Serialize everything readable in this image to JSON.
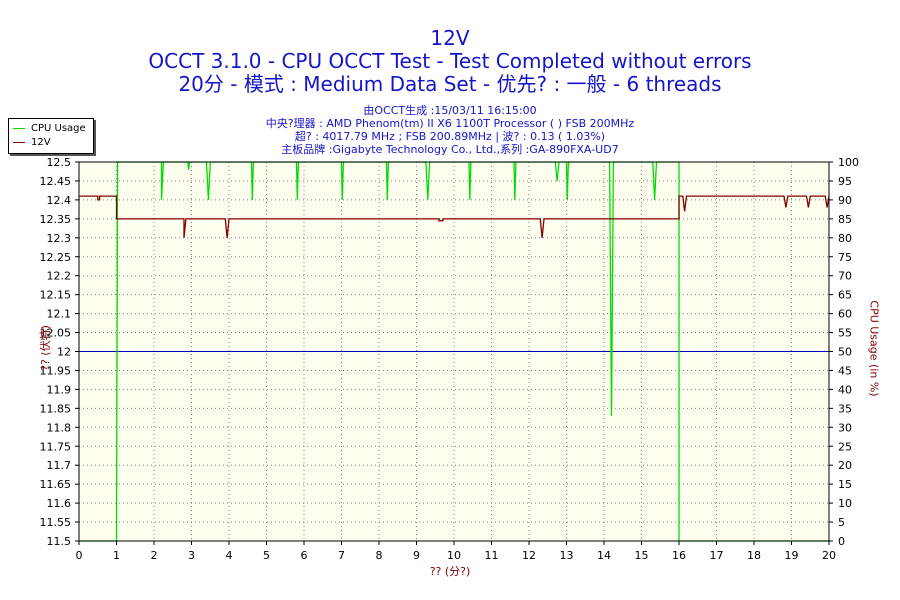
{
  "header": {
    "title": "12V",
    "line2": "OCCT 3.1.0 - CPU OCCT Test - Test Completed without errors",
    "line3": "20分 - 模式 : Medium Data Set - 优先? : 一般 - 6 threads",
    "info1": "由OCCT生成 :15/03/11 16:15:00",
    "info2": "中央?理器 : AMD Phenom(tm) II X6 1100T Processor (    ) FSB 200MHz",
    "info3": "超? : 4017.79 MHz ; FSB 200.89MHz | 波? : 0.13 ( 1.03%)",
    "info4": "主板品牌 :Gigabyte Technology Co., Ltd.,系列 :GA-890FXA-UD7"
  },
  "colors": {
    "plot_bg": "#fffff0",
    "grid": "#808080",
    "cpu_usage": "#00dd00",
    "voltage": "#800000",
    "threshold": "#0000c0",
    "text_blue": "#1515c8",
    "axis_text": "#800000"
  },
  "chart_data": {
    "type": "line",
    "xlabel": "?? (分?)",
    "ylabel_left": "?? (伏特)",
    "ylabel_right": "CPU Usage (in %)",
    "xlim": [
      0,
      20
    ],
    "ylim_left": [
      11.5,
      12.5
    ],
    "ylim_right": [
      0,
      100
    ],
    "x_ticks": [
      0,
      1,
      2,
      3,
      4,
      5,
      6,
      7,
      8,
      9,
      10,
      11,
      12,
      13,
      14,
      15,
      16,
      17,
      18,
      19,
      20
    ],
    "y_ticks_left": [
      12.5,
      12.45,
      12.4,
      12.35,
      12.3,
      12.25,
      12.2,
      12.15,
      12.1,
      12.05,
      12,
      11.95,
      11.9,
      11.85,
      11.8,
      11.75,
      11.7,
      11.65,
      11.6,
      11.55,
      11.5
    ],
    "y_ticks_right": [
      100,
      95,
      90,
      85,
      80,
      75,
      70,
      65,
      60,
      55,
      50,
      45,
      40,
      35,
      30,
      25,
      20,
      15,
      10,
      5,
      0
    ],
    "grid": true,
    "legend_position": "top-left",
    "reference_line": {
      "axis": "left",
      "y": 12.0
    },
    "series": [
      {
        "name": "CPU Usage",
        "axis": "right",
        "x": [
          0,
          1,
          1.0,
          1.03,
          1.05,
          1.1,
          2.2,
          2.2,
          2.25,
          2.3,
          2.9,
          2.92,
          2.95,
          3.4,
          3.45,
          3.5,
          4.6,
          4.62,
          4.65,
          5.8,
          5.82,
          5.85,
          7.0,
          7.02,
          7.05,
          8.2,
          8.22,
          8.25,
          9.25,
          9.3,
          9.35,
          10.4,
          10.42,
          10.45,
          11.6,
          11.62,
          11.65,
          12.7,
          12.75,
          12.8,
          13.0,
          13.02,
          13.05,
          14.15,
          14.2,
          14.25,
          15.3,
          15.35,
          15.4,
          16.0,
          16.0,
          20
        ],
        "y": [
          0,
          0,
          0,
          100,
          100,
          100,
          100,
          90,
          100,
          100,
          100,
          98,
          100,
          100,
          90,
          100,
          100,
          90,
          100,
          100,
          90,
          100,
          100,
          90,
          100,
          100,
          90,
          100,
          100,
          90,
          100,
          100,
          90,
          100,
          100,
          90,
          100,
          100,
          95,
          100,
          100,
          90,
          100,
          100,
          33,
          100,
          100,
          90,
          100,
          100,
          0,
          0
        ]
      },
      {
        "name": "12V",
        "axis": "left",
        "x": [
          0,
          0.5,
          0.5,
          0.55,
          0.55,
          1.0,
          1.0,
          2.8,
          2.8,
          2.85,
          2.9,
          2.95,
          3.9,
          3.95,
          4.0,
          4.05,
          9.6,
          9.6,
          9.7,
          9.7,
          12.3,
          12.35,
          12.4,
          12.45,
          16.0,
          16.0,
          16.1,
          16.15,
          16.2,
          16.25,
          18.8,
          18.85,
          18.9,
          18.95,
          19.4,
          19.45,
          19.5,
          19.55,
          19.9,
          19.95,
          20.0
        ],
        "y": [
          12.41,
          12.41,
          12.4,
          12.4,
          12.41,
          12.41,
          12.35,
          12.35,
          12.3,
          12.35,
          12.35,
          12.35,
          12.35,
          12.3,
          12.35,
          12.35,
          12.35,
          12.345,
          12.345,
          12.35,
          12.35,
          12.3,
          12.35,
          12.35,
          12.35,
          12.41,
          12.41,
          12.37,
          12.41,
          12.41,
          12.41,
          12.38,
          12.41,
          12.41,
          12.41,
          12.38,
          12.41,
          12.41,
          12.41,
          12.38,
          12.41
        ]
      }
    ]
  }
}
